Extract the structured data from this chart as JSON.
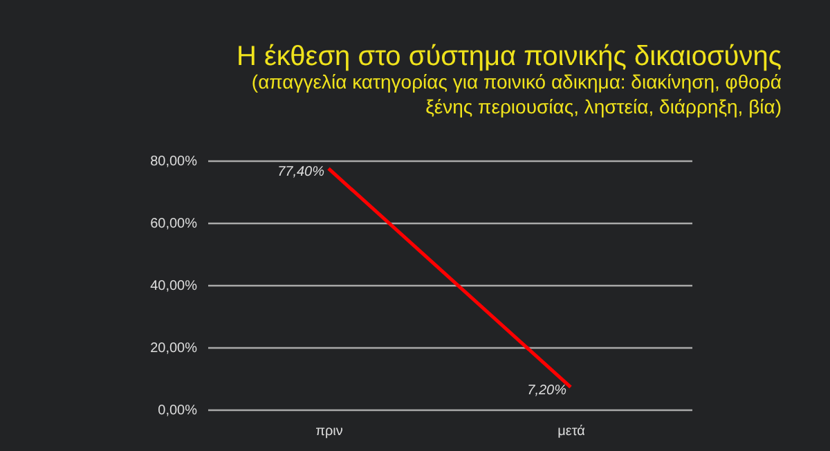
{
  "chart_data": {
    "type": "line",
    "title": "Η έκθεση στο σύστημα ποινικής δικαιοσύνης",
    "subtitle": "(απαγγελία κατηγορίας για ποινικό αδικημα: διακίνηση, φθορά\nξένης περιουσίας, ληστεία, διάρρηξη, βία)",
    "categories": [
      "πριν",
      "μετά"
    ],
    "series": [
      {
        "color": "#ff0000",
        "values": [
          77.4,
          7.2
        ],
        "value_labels": [
          "77,40%",
          "7,20%"
        ]
      }
    ],
    "ylim": [
      0,
      80
    ],
    "yticks": [
      {
        "value": 0,
        "label": "0,00%"
      },
      {
        "value": 20,
        "label": "20,00%"
      },
      {
        "value": 40,
        "label": "40,00%"
      },
      {
        "value": 60,
        "label": "60,00%"
      },
      {
        "value": 80,
        "label": "80,00%"
      }
    ],
    "grid": "y",
    "marker": "none",
    "line_style": "solid"
  }
}
